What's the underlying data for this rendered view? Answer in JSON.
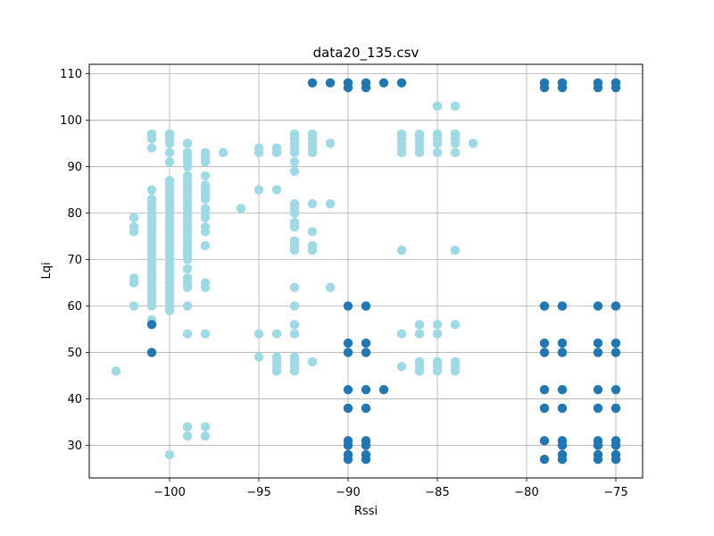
{
  "chart_data": {
    "type": "scatter",
    "title": "data20_135.csv",
    "xlabel": "Rssi",
    "ylabel": "Lqi",
    "xlim": [
      -104.5,
      -73.5
    ],
    "ylim": [
      23,
      112
    ],
    "grid": true,
    "x_ticks": [
      -100,
      -95,
      -90,
      -85,
      -80,
      -75
    ],
    "x_tick_labels": [
      "−100",
      "−95",
      "−90",
      "−85",
      "−80",
      "−75"
    ],
    "y_ticks": [
      30,
      40,
      50,
      60,
      70,
      80,
      90,
      100,
      110
    ],
    "y_tick_labels": [
      "30",
      "40",
      "50",
      "60",
      "70",
      "80",
      "90",
      "100",
      "110"
    ],
    "colors": {
      "dark": "#1f77b4",
      "light": "#9edae5"
    },
    "series": [
      {
        "color_key": "light",
        "columns": [
          {
            "x": -103,
            "y": [
              46
            ]
          },
          {
            "x": -102,
            "y": [
              60,
              65,
              66,
              76,
              77,
              79
            ]
          },
          {
            "x": -101,
            "y": [
              57,
              60,
              61,
              62,
              63,
              64,
              65,
              66,
              67,
              68,
              69,
              70,
              71,
              72,
              73,
              74,
              75,
              76,
              77,
              78,
              79,
              80,
              81,
              82,
              83,
              85,
              94,
              96,
              97
            ]
          },
          {
            "x": -100,
            "y": [
              28,
              59,
              60,
              61,
              62,
              63,
              64,
              65,
              66,
              67,
              68,
              69,
              70,
              71,
              72,
              73,
              74,
              75,
              76,
              77,
              78,
              79,
              80,
              81,
              82,
              83,
              84,
              85,
              86,
              87,
              91,
              93,
              95,
              96,
              97
            ]
          },
          {
            "x": -99,
            "y": [
              32,
              34,
              54,
              60,
              64,
              65,
              66,
              68,
              70,
              71,
              72,
              73,
              74,
              75,
              76,
              77,
              78,
              79,
              80,
              81,
              82,
              83,
              84,
              85,
              86,
              87,
              88,
              90,
              91,
              92,
              93,
              95
            ]
          },
          {
            "x": -98,
            "y": [
              32,
              34,
              54,
              64,
              65,
              73,
              76,
              77,
              79,
              80,
              81,
              83,
              84,
              85,
              86,
              88,
              91,
              92,
              93
            ]
          },
          {
            "x": -97,
            "y": [
              93
            ]
          },
          {
            "x": -96,
            "y": [
              81
            ]
          },
          {
            "x": -95,
            "y": [
              49,
              54,
              85,
              93,
              94
            ]
          },
          {
            "x": -94,
            "y": [
              46,
              47,
              48,
              49,
              54,
              85,
              93,
              94
            ]
          },
          {
            "x": -93,
            "y": [
              46,
              47,
              48,
              49,
              54,
              56,
              60,
              64,
              72,
              73,
              74,
              77,
              78,
              80,
              81,
              82,
              89,
              91,
              93,
              94,
              95,
              96,
              97
            ]
          },
          {
            "x": -92,
            "y": [
              48,
              72,
              73,
              76,
              82,
              93,
              94,
              95,
              96,
              97
            ]
          },
          {
            "x": -91,
            "y": [
              64,
              82,
              95
            ]
          },
          {
            "x": -87,
            "y": [
              47,
              54,
              72,
              93,
              94,
              95,
              96,
              97
            ]
          },
          {
            "x": -86,
            "y": [
              46,
              47,
              48,
              54,
              56,
              93,
              94,
              95,
              96,
              97
            ]
          },
          {
            "x": -85,
            "y": [
              46,
              47,
              48,
              54,
              56,
              93,
              95,
              96,
              97,
              103
            ]
          },
          {
            "x": -84,
            "y": [
              46,
              47,
              48,
              56,
              72,
              93,
              95,
              96,
              97,
              103
            ]
          },
          {
            "x": -83,
            "y": [
              95
            ]
          }
        ]
      },
      {
        "color_key": "dark",
        "columns": [
          {
            "x": -101,
            "y": [
              50,
              56
            ]
          },
          {
            "x": -92,
            "y": [
              108
            ]
          },
          {
            "x": -91,
            "y": [
              108
            ]
          },
          {
            "x": -90,
            "y": [
              27,
              28,
              30,
              31,
              38,
              42,
              50,
              52,
              60,
              107,
              108
            ]
          },
          {
            "x": -89,
            "y": [
              27,
              28,
              30,
              31,
              38,
              42,
              50,
              52,
              60,
              107,
              108
            ]
          },
          {
            "x": -88,
            "y": [
              42,
              108
            ]
          },
          {
            "x": -87,
            "y": [
              108
            ]
          },
          {
            "x": -79,
            "y": [
              27,
              31,
              38,
              42,
              50,
              52,
              60,
              107,
              108
            ]
          },
          {
            "x": -78,
            "y": [
              27,
              28,
              30,
              31,
              38,
              42,
              50,
              52,
              60,
              107,
              108
            ]
          },
          {
            "x": -76,
            "y": [
              27,
              28,
              30,
              31,
              38,
              42,
              50,
              52,
              60,
              107,
              108
            ]
          },
          {
            "x": -75,
            "y": [
              27,
              28,
              30,
              31,
              38,
              42,
              50,
              52,
              60,
              107,
              108
            ]
          }
        ]
      }
    ]
  }
}
